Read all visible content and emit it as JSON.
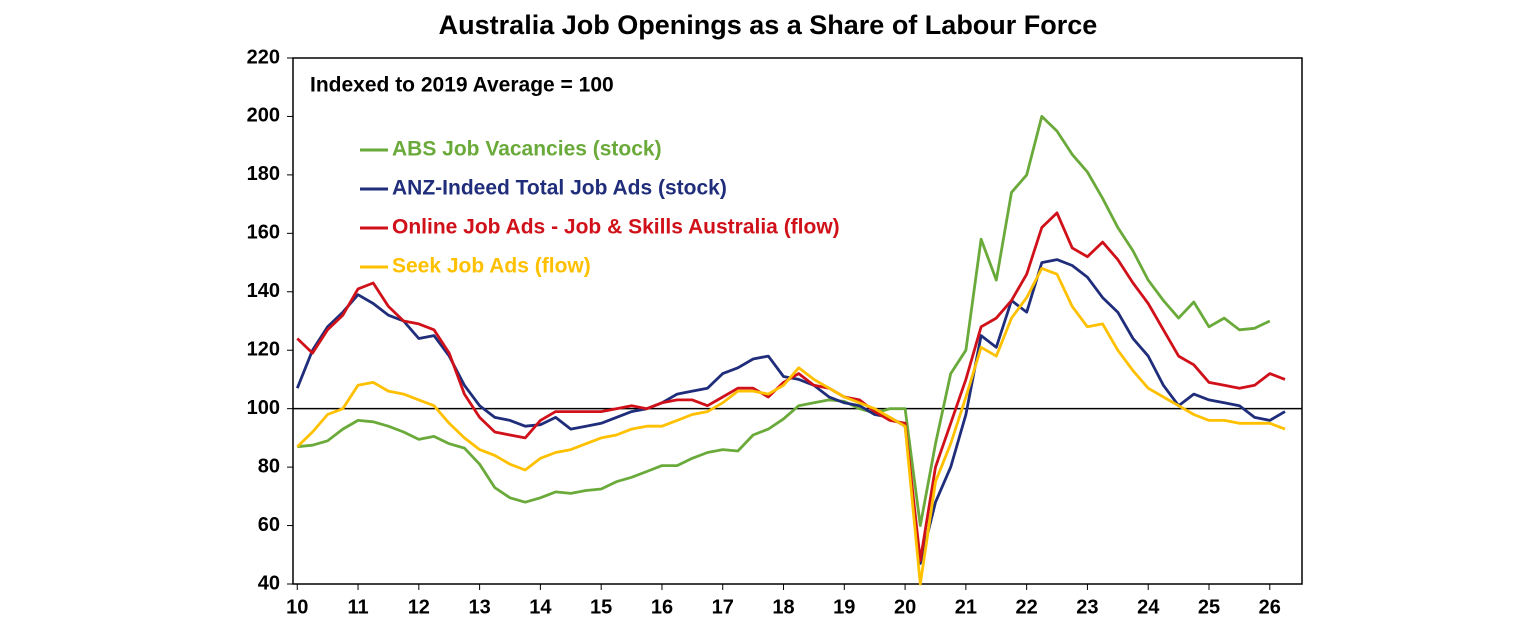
{
  "chart_data": {
    "type": "line",
    "title": "Australia Job Openings as a Share of Labour Force",
    "subtitle": "Indexed to 2019 Average = 100",
    "x": [
      10,
      10.25,
      10.5,
      10.75,
      11,
      11.25,
      11.5,
      11.75,
      12,
      12.25,
      12.5,
      12.75,
      13,
      13.25,
      13.5,
      13.75,
      14,
      14.25,
      14.5,
      14.75,
      15,
      15.25,
      15.5,
      15.75,
      16,
      16.25,
      16.5,
      16.75,
      17,
      17.25,
      17.5,
      17.75,
      18,
      18.25,
      18.5,
      18.75,
      19,
      19.25,
      19.5,
      19.75,
      20,
      20.25,
      20.5,
      20.75,
      21,
      21.25,
      21.5,
      21.75,
      22,
      22.25,
      22.5,
      22.75,
      23,
      23.25,
      23.5,
      23.75,
      24,
      24.25,
      24.5,
      24.75,
      25,
      25.25,
      25.5,
      25.75,
      26,
      26.25
    ],
    "series": [
      {
        "name": "ABS Job Vacancies (stock)",
        "color": "#6aaa3a",
        "values": [
          87,
          87.5,
          89,
          93,
          96,
          95.5,
          94,
          92,
          89.5,
          90.5,
          88,
          86.5,
          81,
          73,
          69.5,
          68,
          69.5,
          71.5,
          71,
          72,
          72.5,
          75,
          76.5,
          78.5,
          80.5,
          80.5,
          83,
          85,
          86,
          85.5,
          91,
          93,
          96.5,
          101,
          102,
          103,
          102.5,
          100,
          98.5,
          100,
          100,
          60,
          88,
          112,
          120,
          158,
          144,
          174,
          180,
          200,
          195,
          187,
          181,
          172,
          162,
          154,
          144,
          137,
          131,
          136.5,
          128,
          131,
          127,
          127.5,
          130,
          null
        ]
      },
      {
        "name": "ANZ-Indeed Total Job Ads (stock)",
        "color": "#1f2d7a",
        "values": [
          107,
          120,
          128,
          133,
          139,
          136,
          132,
          130,
          124,
          125,
          118,
          108,
          101,
          97,
          96,
          94,
          94.5,
          97,
          93,
          94,
          95,
          97,
          99,
          100,
          102,
          105,
          106,
          107,
          112,
          114,
          117,
          118,
          111,
          110,
          108,
          104,
          102,
          101,
          98,
          97,
          94,
          47,
          68,
          80,
          98,
          125,
          121,
          137,
          133,
          150,
          151,
          149,
          145,
          138,
          133,
          124,
          118,
          108,
          101,
          105,
          103,
          102,
          101,
          97,
          96,
          99
        ]
      },
      {
        "name": "Online Job Ads - Job & Skills Australia (flow)",
        "color": "#d0111a",
        "values": [
          124,
          119,
          127,
          132,
          141,
          143,
          135,
          130,
          129,
          127,
          119,
          105,
          97,
          92,
          91,
          90,
          96,
          99,
          99,
          99,
          99,
          100,
          101,
          100,
          102,
          103,
          103,
          101,
          104,
          107,
          107,
          104,
          109,
          112,
          108,
          107,
          104,
          103,
          99,
          96,
          95,
          48,
          80,
          95,
          110,
          128,
          131,
          137,
          146,
          162,
          167,
          155,
          152,
          157,
          151,
          143,
          136,
          127,
          118,
          115,
          109,
          108,
          107,
          108,
          112,
          110
        ]
      },
      {
        "name": "Seek Job Ads (flow)",
        "color": "#ffc000",
        "values": [
          87,
          92,
          98,
          100,
          108,
          109,
          106,
          105,
          103,
          101,
          95,
          90,
          86,
          84,
          81,
          79,
          83,
          85,
          86,
          88,
          90,
          91,
          93,
          94,
          94,
          96,
          98,
          99,
          102,
          106,
          106,
          105,
          108,
          114,
          110,
          107,
          104,
          102,
          100,
          97,
          94,
          40,
          75,
          88,
          104,
          121,
          118,
          131,
          138,
          148,
          146,
          135,
          128,
          129,
          120,
          113,
          107,
          104,
          101,
          98,
          96,
          96,
          95,
          95,
          95,
          93
        ]
      }
    ],
    "reference_line": 100,
    "xlim": [
      9.93,
      26.53
    ],
    "xticks": [
      10,
      11,
      12,
      13,
      14,
      15,
      16,
      17,
      18,
      19,
      20,
      21,
      22,
      23,
      24,
      25,
      26
    ],
    "ylim": [
      40,
      220
    ],
    "yticks": [
      40,
      60,
      80,
      100,
      120,
      140,
      160,
      180,
      200,
      220
    ]
  }
}
